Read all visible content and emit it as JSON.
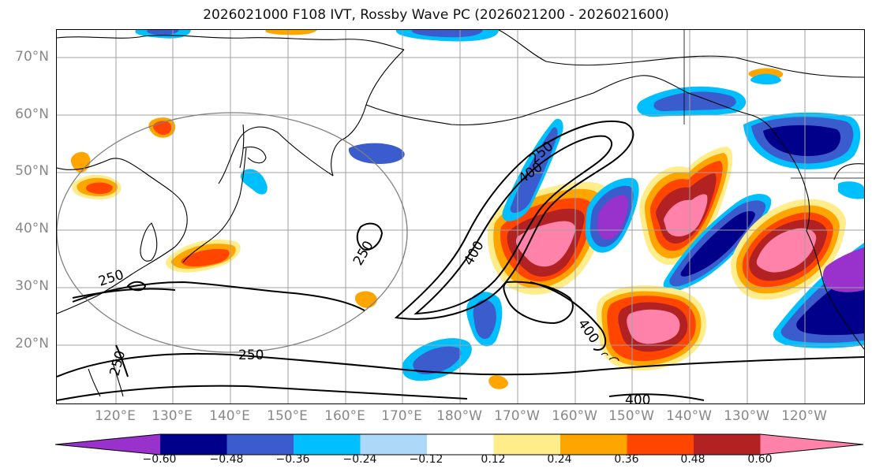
{
  "title": "2026021000 F108 IVT, Rossby Wave PC (2026021200 - 2026021600)",
  "lat_labels": [
    "70°N",
    "60°N",
    "50°N",
    "40°N",
    "30°N",
    "20°N"
  ],
  "lon_labels": [
    "120°E",
    "130°E",
    "140°E",
    "150°E",
    "160°E",
    "170°E",
    "180°W",
    "170°W",
    "160°W",
    "150°W",
    "140°W",
    "130°W",
    "120°W"
  ],
  "contour_labels": [
    "250",
    "400",
    "400",
    "250",
    "250",
    "250",
    "400",
    "400",
    "250"
  ],
  "colorbar": {
    "colors": [
      "#9932cc",
      "#00008b",
      "#3a5ccc",
      "#00bfff",
      "#add8f8",
      "#ffffff",
      "#ffec8b",
      "#ffa500",
      "#ff4500",
      "#b22222",
      "#ff82ab"
    ],
    "tick_labels": [
      "−0.60",
      "−0.48",
      "−0.36",
      "−0.24",
      "−0.12",
      "0.12",
      "0.24",
      "0.36",
      "0.48",
      "0.60"
    ]
  },
  "palette": {
    "land": "#000000",
    "grid": "#a0a0a0",
    "circle": "#808080",
    "contour": "#000000"
  }
}
